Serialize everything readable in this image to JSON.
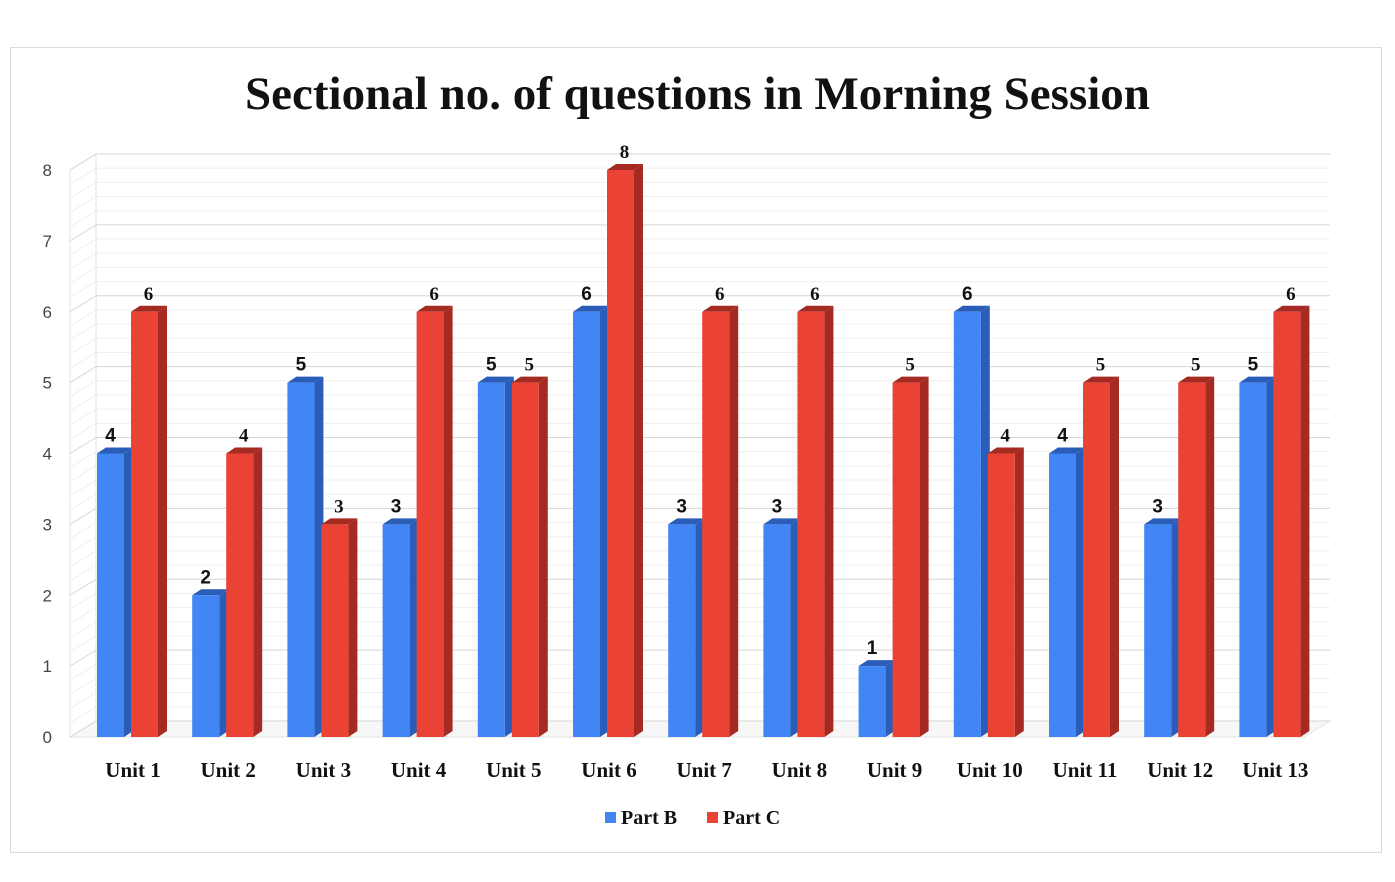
{
  "chart_data": {
    "type": "bar",
    "style": "3d-clustered",
    "title": "Sectional no. of questions in Morning Session",
    "xlabel": "",
    "ylabel": "",
    "categories": [
      "Unit 1",
      "Unit 2",
      "Unit 3",
      "Unit 4",
      "Unit 5",
      "Unit 6",
      "Unit 7",
      "Unit 8",
      "Unit 9",
      "Unit 10",
      "Unit 11",
      "Unit 12",
      "Unit 13"
    ],
    "series": [
      {
        "name": "Part B",
        "color": "#4285f4",
        "side_color": "#2a5db8",
        "values": [
          4,
          2,
          5,
          3,
          5,
          6,
          3,
          3,
          1,
          6,
          4,
          3,
          5
        ]
      },
      {
        "name": "Part C",
        "color": "#ea4335",
        "side_color": "#a52a22",
        "values": [
          6,
          4,
          3,
          6,
          5,
          8,
          6,
          6,
          5,
          4,
          5,
          5,
          6
        ]
      }
    ],
    "ylim": [
      0,
      8
    ],
    "yticks": [
      0,
      1,
      2,
      3,
      4,
      5,
      6,
      7,
      8
    ],
    "grid": true,
    "legend_position": "bottom",
    "data_labels": true
  }
}
